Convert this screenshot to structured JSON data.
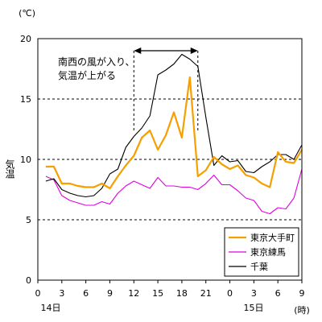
{
  "chart_data": {
    "type": "line",
    "unit_label": "(℃)",
    "ylabel": "気温",
    "x_unit_label": "(時)",
    "ylim": [
      0,
      20
    ],
    "yticks": [
      0,
      5,
      10,
      15,
      20
    ],
    "grid": "horizontal dashed at 5, 10, 15",
    "xtick_labels": [
      "0",
      "3",
      "6",
      "9",
      "12",
      "15",
      "18",
      "21",
      "0",
      "3",
      "6",
      "9"
    ],
    "day_labels": [
      "14日",
      "15日"
    ],
    "annotation": {
      "lines": [
        "南西の風が入り、",
        "気温が上がる"
      ],
      "x_from": "12",
      "x_to": "20"
    },
    "x": [
      "1",
      "2",
      "3",
      "4",
      "5",
      "6",
      "7",
      "8",
      "9",
      "10",
      "11",
      "12",
      "13",
      "14",
      "15",
      "16",
      "17",
      "18",
      "19",
      "20",
      "21",
      "22",
      "23",
      "0",
      "1",
      "2",
      "3",
      "4",
      "5",
      "6",
      "7",
      "8",
      "9"
    ],
    "legend_position": "bottom-right",
    "series": [
      {
        "name": "東京大手町",
        "color": "#f5a000",
        "values": [
          9.4,
          9.4,
          8.0,
          8.0,
          7.8,
          7.7,
          7.7,
          8.0,
          7.6,
          8.6,
          9.5,
          10.3,
          11.8,
          12.4,
          10.8,
          12.0,
          13.9,
          11.8,
          16.8,
          8.6,
          9.1,
          10.2,
          9.6,
          9.2,
          9.5,
          8.7,
          8.5,
          8.0,
          7.7,
          10.6,
          9.8,
          9.7,
          10.8
        ]
      },
      {
        "name": "東京練馬",
        "color": "#e000e0",
        "values": [
          8.6,
          8.3,
          7.0,
          6.6,
          6.4,
          6.2,
          6.2,
          6.5,
          6.3,
          7.2,
          7.8,
          8.2,
          7.9,
          7.6,
          8.5,
          7.8,
          7.8,
          7.7,
          7.7,
          7.5,
          8.0,
          8.7,
          7.9,
          7.9,
          7.4,
          6.8,
          6.6,
          5.7,
          5.5,
          6.0,
          5.9,
          6.8,
          9.2
        ]
      },
      {
        "name": "千葉",
        "color": "#000000",
        "values": [
          8.2,
          8.4,
          7.5,
          7.2,
          7.0,
          6.9,
          7.0,
          7.6,
          8.8,
          9.2,
          11.0,
          11.9,
          12.6,
          13.6,
          17.0,
          17.4,
          17.9,
          18.7,
          18.3,
          17.7,
          13.5,
          9.5,
          10.3,
          9.8,
          9.9,
          9.0,
          8.9,
          9.4,
          9.8,
          10.4,
          10.4,
          10.0,
          11.2
        ]
      }
    ]
  }
}
